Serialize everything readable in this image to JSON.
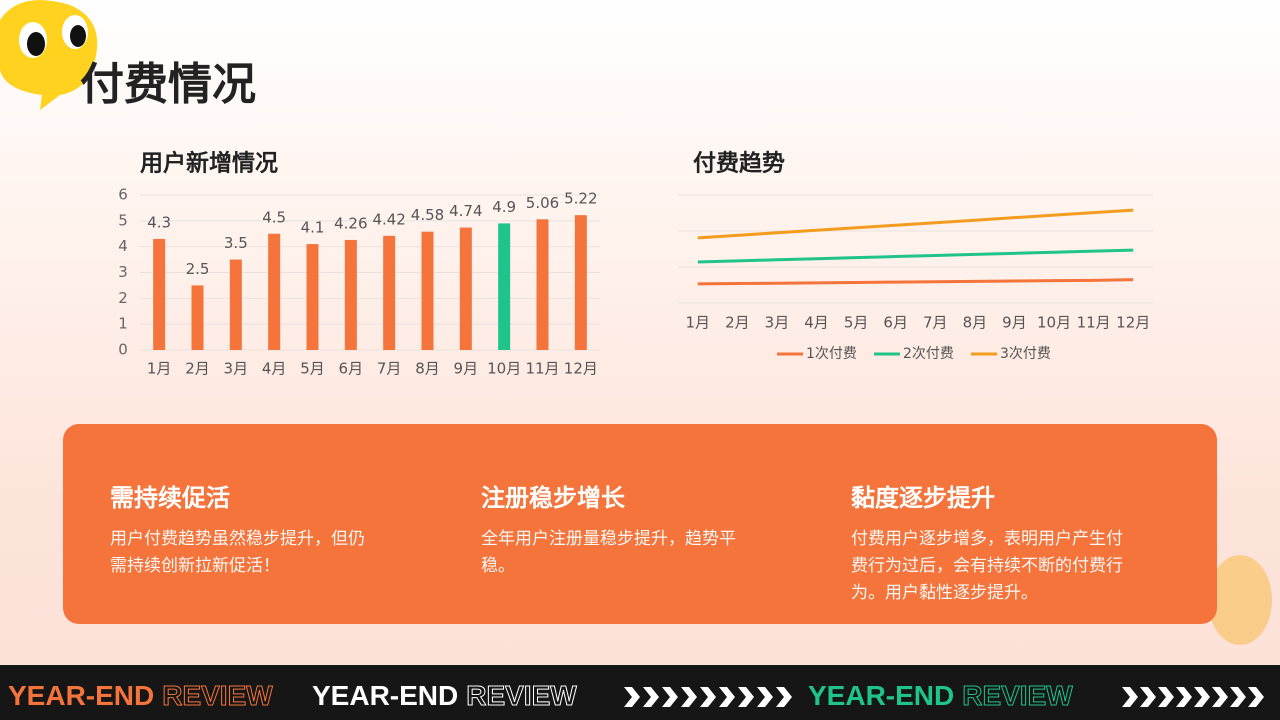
{
  "header": {
    "title": "付费情况"
  },
  "chart_data": [
    {
      "type": "bar",
      "title": "用户新增情况",
      "categories": [
        "1月",
        "2月",
        "3月",
        "4月",
        "5月",
        "6月",
        "7月",
        "8月",
        "9月",
        "10月",
        "11月",
        "12月"
      ],
      "values": [
        4.3,
        2.5,
        3.5,
        4.5,
        4.1,
        4.26,
        4.42,
        4.58,
        4.74,
        4.9,
        5.06,
        5.22
      ],
      "colors": [
        "#f4743b",
        "#f4743b",
        "#f4743b",
        "#f4743b",
        "#f4743b",
        "#f4743b",
        "#f4743b",
        "#f4743b",
        "#f4743b",
        "#1fc48a",
        "#f4743b",
        "#f4743b"
      ],
      "ylim": [
        0,
        6
      ],
      "yticks": [
        0,
        1,
        2,
        3,
        4,
        5,
        6
      ],
      "grid": true,
      "data_labels": true
    },
    {
      "type": "line",
      "title": "付费趋势",
      "categories": [
        "1月",
        "2月",
        "3月",
        "4月",
        "5月",
        "6月",
        "7月",
        "8月",
        "9月",
        "10月",
        "11月",
        "12月"
      ],
      "series": [
        {
          "name": "1次付费",
          "color": "#f4743b",
          "values": [
            0.53,
            0.54,
            0.55,
            0.56,
            0.57,
            0.58,
            0.59,
            0.6,
            0.61,
            0.62,
            0.63,
            0.65
          ]
        },
        {
          "name": "2次付费",
          "color": "#1fc48a",
          "values": [
            1.14,
            1.17,
            1.2,
            1.23,
            1.26,
            1.29,
            1.32,
            1.35,
            1.38,
            1.41,
            1.44,
            1.47
          ]
        },
        {
          "name": "3次付费",
          "color": "#f39c1f",
          "values": [
            1.81,
            1.88,
            1.95,
            2.02,
            2.09,
            2.16,
            2.23,
            2.3,
            2.37,
            2.44,
            2.51,
            2.58
          ]
        }
      ],
      "ylim": [
        0,
        3
      ],
      "yticks": [
        0,
        1,
        2,
        3
      ],
      "grid": true,
      "ytick_labels": false,
      "legend": "bottom"
    }
  ],
  "cards": [
    {
      "title": "需持续促活",
      "text": "用户付费趋势虽然稳步提升，但仍需持续创新拉新促活！"
    },
    {
      "title": "注册稳步增长",
      "text": "全年用户注册量稳步提升，趋势平稳。"
    },
    {
      "title": "黏度逐步提升",
      "text": "付费用户逐步增多，表明用户产生付费行为过后，会有持续不断的付费行为。用户黏性逐步提升。"
    }
  ],
  "footer": [
    {
      "bold": "YEAR-END",
      "outline": "REVIEW",
      "color": "#f4743b"
    },
    {
      "bold": "YEAR-END",
      "outline": "REVIEW",
      "color": "#ffffff"
    },
    {
      "bold": "YEAR-END",
      "outline": "REVIEW",
      "color": "#1fc48a"
    }
  ]
}
